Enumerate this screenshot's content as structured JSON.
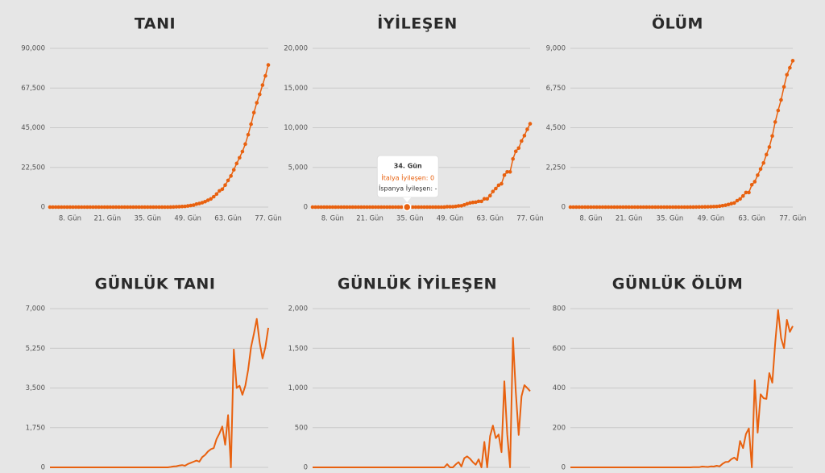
{
  "chart_data": [
    {
      "type": "line",
      "title": "TANI",
      "color": "#e8610f",
      "markers": true,
      "grid": true,
      "categories": [
        null,
        null,
        null,
        null,
        null,
        null,
        null,
        "8. Gün",
        null,
        null,
        null,
        null,
        null,
        null,
        null,
        null,
        null,
        null,
        null,
        null,
        "21. Gün",
        null,
        null,
        null,
        null,
        null,
        null,
        null,
        null,
        null,
        null,
        null,
        null,
        null,
        "35. Gün",
        null,
        null,
        null,
        null,
        null,
        null,
        null,
        null,
        null,
        null,
        null,
        null,
        null,
        "49. Gün",
        null,
        null,
        null,
        null,
        null,
        null,
        null,
        null,
        null,
        null,
        null,
        null,
        null,
        "63. Gün",
        null,
        null,
        null,
        null,
        null,
        null,
        null,
        null,
        null,
        null,
        null,
        null,
        null,
        "77. Gün"
      ],
      "values": [
        0,
        0,
        0,
        0,
        0,
        0,
        0,
        0,
        0,
        0,
        0,
        0,
        0,
        0,
        0,
        0,
        0,
        0,
        0,
        0,
        0,
        0,
        0,
        0,
        0,
        0,
        0,
        0,
        0,
        0,
        2,
        2,
        2,
        2,
        3,
        3,
        3,
        3,
        3,
        3,
        3,
        3,
        20,
        79,
        150,
        229,
        322,
        400,
        650,
        888,
        1128,
        1694,
        2036,
        2502,
        3089,
        3858,
        4636,
        5883,
        7375,
        9172,
        10149,
        12462,
        15113,
        17660,
        21157,
        24747,
        27980,
        31506,
        35713,
        41035,
        47021,
        53578,
        59138,
        63927,
        69176,
        74386,
        80589
      ],
      "ylim": [
        0,
        90000
      ],
      "yticks": [
        0,
        {
          "value": 22500,
          "label": "22,500"
        },
        {
          "value": 45000,
          "label": "45,000"
        },
        {
          "value": 67500,
          "label": "67,500"
        },
        {
          "value": 90000,
          "label": "90,000"
        }
      ]
    },
    {
      "type": "line",
      "title": "İYİLEŞEN",
      "color": "#e8610f",
      "markers": true,
      "grid": true,
      "categories": [
        null,
        null,
        null,
        null,
        null,
        null,
        null,
        "8. Gün",
        null,
        null,
        null,
        null,
        null,
        null,
        null,
        null,
        null,
        null,
        null,
        null,
        "21. Gün",
        null,
        null,
        null,
        null,
        null,
        null,
        null,
        null,
        null,
        null,
        null,
        null,
        null,
        "35. Gün",
        null,
        null,
        null,
        null,
        null,
        null,
        null,
        null,
        null,
        null,
        null,
        null,
        null,
        "49. Gün",
        null,
        null,
        null,
        null,
        null,
        null,
        null,
        null,
        null,
        null,
        null,
        null,
        null,
        "63. Gün",
        null,
        null,
        null,
        null,
        null,
        null,
        null,
        null,
        null,
        null,
        null,
        null,
        null,
        "77. Gün"
      ],
      "values": [
        0,
        0,
        0,
        0,
        0,
        0,
        0,
        0,
        0,
        0,
        0,
        0,
        0,
        0,
        0,
        0,
        0,
        0,
        0,
        0,
        0,
        0,
        0,
        0,
        0,
        0,
        0,
        0,
        0,
        0,
        0,
        0,
        0,
        0,
        0,
        0,
        0,
        0,
        0,
        0,
        0,
        0,
        0,
        0,
        1,
        1,
        2,
        45,
        46,
        46,
        83,
        149,
        160,
        276,
        414,
        523,
        589,
        622,
        724,
        724,
        1045,
        1045,
        1439,
        1966,
        2335,
        2749,
        2941,
        4025,
        4440,
        4440,
        6072,
        7024,
        7432,
        8326,
        9000,
        9800,
        10500
      ],
      "ylim": [
        0,
        20000
      ],
      "yticks": [
        0,
        {
          "value": 5000,
          "label": "5,000"
        },
        {
          "value": 10000,
          "label": "10,000"
        },
        {
          "value": 15000,
          "label": "15,000"
        },
        {
          "value": 20000,
          "label": "20,000"
        }
      ],
      "tooltip": {
        "title": "34. Gün",
        "lines": [
          "İtalya İyileşen: 0",
          "İspanya İyileşen: -"
        ]
      }
    },
    {
      "type": "line",
      "title": "ÖLÜM",
      "color": "#e8610f",
      "markers": true,
      "grid": true,
      "categories": [
        null,
        null,
        null,
        null,
        null,
        null,
        null,
        "8. Gün",
        null,
        null,
        null,
        null,
        null,
        null,
        null,
        null,
        null,
        null,
        null,
        null,
        "21. Gün",
        null,
        null,
        null,
        null,
        null,
        null,
        null,
        null,
        null,
        null,
        null,
        null,
        null,
        "35. Gün",
        null,
        null,
        null,
        null,
        null,
        null,
        null,
        null,
        null,
        null,
        null,
        null,
        null,
        "49. Gün",
        null,
        null,
        null,
        null,
        null,
        null,
        null,
        null,
        null,
        null,
        null,
        null,
        null,
        "63. Gün",
        null,
        null,
        null,
        null,
        null,
        null,
        null,
        null,
        null,
        null,
        null,
        null,
        null,
        "77. Gün"
      ],
      "values": [
        0,
        0,
        0,
        0,
        0,
        0,
        0,
        0,
        0,
        0,
        0,
        0,
        0,
        0,
        0,
        0,
        0,
        0,
        0,
        0,
        0,
        0,
        0,
        0,
        0,
        0,
        0,
        0,
        0,
        0,
        0,
        0,
        0,
        0,
        0,
        0,
        0,
        0,
        0,
        0,
        0,
        1,
        2,
        3,
        7,
        10,
        12,
        17,
        21,
        29,
        34,
        52,
        79,
        107,
        148,
        197,
        233,
        366,
        463,
        631,
        827,
        827,
        1266,
        1441,
        1809,
        2158,
        2503,
        2978,
        3405,
        4032,
        4825,
        5476,
        6077,
        6820,
        7503,
        7900,
        8300
      ],
      "ylim": [
        0,
        9000
      ],
      "yticks": [
        0,
        {
          "value": 2250,
          "label": "2,250"
        },
        {
          "value": 4500,
          "label": "4,500"
        },
        {
          "value": 6750,
          "label": "6,750"
        },
        {
          "value": 9000,
          "label": "9,000"
        }
      ]
    },
    {
      "type": "line",
      "title": "GÜNLÜK TANI",
      "color": "#e8610f",
      "markers": false,
      "grid": true,
      "values": [
        0,
        0,
        0,
        0,
        0,
        0,
        0,
        0,
        0,
        0,
        0,
        0,
        0,
        0,
        0,
        0,
        0,
        0,
        0,
        0,
        0,
        0,
        0,
        0,
        0,
        0,
        0,
        0,
        0,
        0,
        0,
        0,
        0,
        0,
        0,
        0,
        0,
        0,
        0,
        0,
        0,
        0,
        17,
        40,
        50,
        80,
        100,
        70,
        150,
        200,
        250,
        300,
        250,
        450,
        550,
        700,
        800,
        850,
        1250,
        1500,
        1800,
        1000,
        2300,
        0,
        5200,
        3500,
        3600,
        3200,
        3600,
        4300,
        5300,
        5900,
        6550,
        5500,
        4800,
        5300,
        6150
      ],
      "ylim": [
        0,
        7000
      ],
      "yticks": [
        0,
        {
          "value": 1750,
          "label": "1,750"
        },
        {
          "value": 3500,
          "label": "3,500"
        },
        {
          "value": 5250,
          "label": "5,250"
        },
        {
          "value": 7000,
          "label": "7,000"
        }
      ]
    },
    {
      "type": "line",
      "title": "GÜNLÜK İYİLEŞEN",
      "color": "#e8610f",
      "markers": false,
      "grid": true,
      "values": [
        0,
        0,
        0,
        0,
        0,
        0,
        0,
        0,
        0,
        0,
        0,
        0,
        0,
        0,
        0,
        0,
        0,
        0,
        0,
        0,
        0,
        0,
        0,
        0,
        0,
        0,
        0,
        0,
        0,
        0,
        0,
        0,
        0,
        0,
        0,
        0,
        0,
        0,
        0,
        0,
        0,
        0,
        0,
        0,
        0,
        0,
        0,
        40,
        0,
        0,
        37,
        66,
        11,
        116,
        138,
        109,
        66,
        33,
        102,
        0,
        321,
        0,
        394,
        527,
        369,
        414,
        192,
        1084,
        415,
        0,
        1632,
        952,
        408,
        894,
        1036,
        1000,
        960
      ],
      "ylim": [
        0,
        2000
      ],
      "yticks": [
        0,
        500,
        {
          "value": 1000,
          "label": "1,000"
        },
        {
          "value": 1500,
          "label": "1,500"
        },
        {
          "value": 2000,
          "label": "2,000"
        }
      ]
    },
    {
      "type": "line",
      "title": "GÜNLÜK ÖLÜM",
      "color": "#e8610f",
      "markers": false,
      "grid": true,
      "values": [
        0,
        0,
        0,
        0,
        0,
        0,
        0,
        0,
        0,
        0,
        0,
        0,
        0,
        0,
        0,
        0,
        0,
        0,
        0,
        0,
        0,
        0,
        0,
        0,
        0,
        0,
        0,
        0,
        0,
        0,
        0,
        0,
        0,
        0,
        0,
        0,
        0,
        0,
        0,
        0,
        0,
        0,
        1,
        1,
        1,
        4,
        3,
        2,
        5,
        4,
        8,
        5,
        18,
        27,
        28,
        41,
        49,
        36,
        133,
        97,
        168,
        196,
        0,
        439,
        175,
        368,
        349,
        345,
        475,
        427,
        627,
        793,
        651,
        601,
        743,
        683,
        712
      ],
      "ylim": [
        0,
        800
      ],
      "yticks": [
        0,
        200,
        400,
        600,
        800
      ]
    }
  ]
}
